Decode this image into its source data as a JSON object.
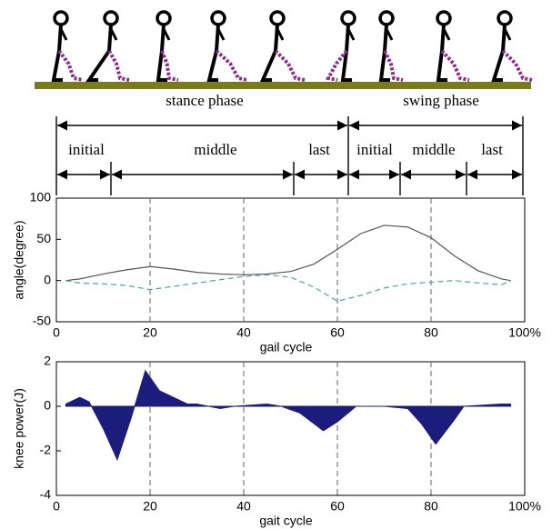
{
  "phases": {
    "stance": "stance phase",
    "swing": "swing phase",
    "subphases": [
      "initial",
      "middle",
      "last",
      "initial",
      "middle",
      "last"
    ]
  },
  "chart_data": [
    {
      "type": "line",
      "ylabel": "angle(degree)",
      "xlabel": "gail cycle",
      "x": [
        2,
        5,
        10,
        15,
        20,
        25,
        30,
        35,
        40,
        45,
        50,
        55,
        60,
        65,
        70,
        75,
        80,
        85,
        90,
        95,
        97
      ],
      "series": [
        {
          "color": "#555555",
          "dashed": false,
          "values": [
            0,
            2,
            8,
            13,
            17,
            14,
            10,
            8,
            7,
            8,
            11,
            20,
            38,
            57,
            67,
            65,
            52,
            30,
            12,
            2,
            0
          ]
        },
        {
          "color": "#4aa39a",
          "dashed": true,
          "values": [
            0,
            -3,
            -4,
            -6,
            -11,
            -7,
            -3,
            1,
            5,
            7,
            4,
            -8,
            -25,
            -18,
            -9,
            -4,
            -2,
            0,
            -3,
            -5,
            -1
          ]
        }
      ],
      "xlim": [
        0,
        100
      ],
      "xticks": [
        0,
        20,
        40,
        60,
        80,
        {
          "value": 100,
          "label": "100%"
        }
      ],
      "ylim": [
        -50,
        100
      ],
      "yticks": [
        -50,
        0,
        50,
        100
      ],
      "xgrid": true
    },
    {
      "type": "area",
      "ylabel": "knee power(J)",
      "xlabel": "gait cycle",
      "x": [
        2,
        5,
        7,
        10,
        13,
        16,
        19,
        22,
        25,
        28,
        30,
        35,
        38,
        45,
        48,
        52,
        57,
        60,
        64,
        70,
        75,
        78,
        81,
        85,
        87,
        95,
        97
      ],
      "series": [
        {
          "color": "#1c1c7c",
          "values": [
            0.1,
            0.4,
            0.2,
            -1,
            -2.4,
            -0.5,
            1.6,
            0.7,
            0.4,
            0.1,
            0.1,
            -0.1,
            0,
            0.1,
            0,
            -0.3,
            -1.1,
            -0.7,
            0,
            0,
            -0.1,
            -0.8,
            -1.7,
            -0.6,
            0,
            0.1,
            0.1
          ]
        }
      ],
      "xlim": [
        0,
        100
      ],
      "xticks": [
        0,
        20,
        40,
        60,
        80,
        {
          "value": 100,
          "label": "100%"
        }
      ],
      "ylim": [
        -4,
        2
      ],
      "yticks": [
        -4,
        -2,
        0,
        2
      ],
      "xgrid": true
    }
  ]
}
